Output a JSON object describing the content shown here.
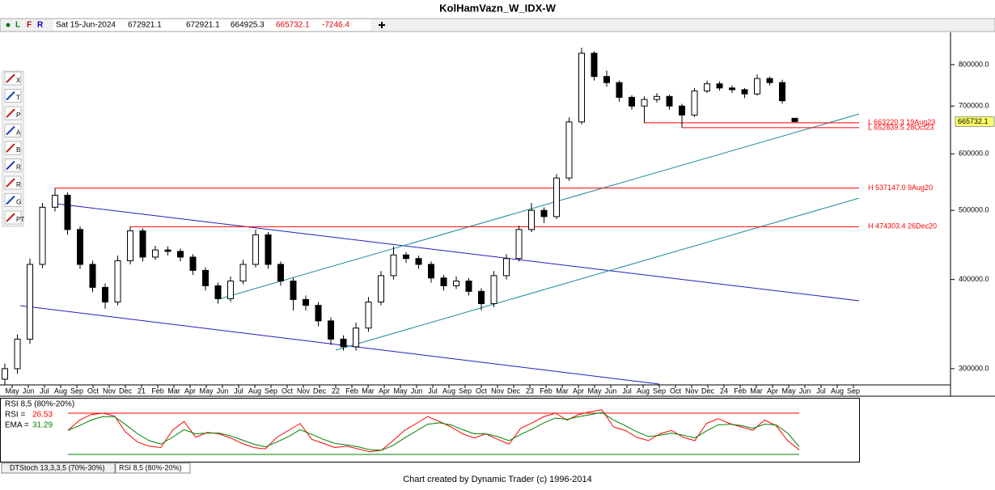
{
  "toolbar": {
    "date": "Sat 15-Jun-2024",
    "change": -7246.4,
    "modes": [
      "L",
      "F",
      "R"
    ]
  },
  "tools": [
    "X",
    "T",
    "P",
    "A",
    "B",
    "R",
    "R",
    "G",
    "PT"
  ],
  "chart_data": [
    {
      "type": "candlestick",
      "title": "KolHamVazn_W_IDX-W",
      "log_scale": true,
      "up_color": "#ffffff",
      "down_color": "#000000",
      "ylim": [
        287700,
        881000
      ],
      "yticks": [
        {
          "value": 300000,
          "label": "300000.0"
        },
        {
          "value": 400000,
          "label": "400000.0"
        },
        {
          "value": 500000,
          "label": "500000.0"
        },
        {
          "value": 600000,
          "label": "600000.0"
        },
        {
          "value": 700000,
          "label": "700000.0"
        },
        {
          "value": 800000,
          "label": "800000.0"
        }
      ],
      "xticks": [
        "May",
        "Jun",
        "Jul",
        "Aug",
        "Sep",
        "Oct",
        "Nov",
        "Dec",
        "21",
        "Feb",
        "Mar",
        "Apr",
        "May",
        "Jun",
        "Jul",
        "Aug",
        "Sep",
        "Oct",
        "Nov",
        "Dec",
        "22",
        "Feb",
        "Mar",
        "Apr",
        "May",
        "Jun",
        "Jul",
        "Aug",
        "Sep",
        "Oct",
        "Nov",
        "Dec",
        "23",
        "Feb",
        "Mar",
        "Apr",
        "May",
        "Jun",
        "Jul",
        "Aug",
        "Sep",
        "Oct",
        "Nov",
        "Dec",
        "24",
        "Feb",
        "Mar",
        "Apr",
        "May",
        "Jun",
        "Jul",
        "Aug",
        "Sep"
      ],
      "candles": [
        [
          290000,
          305000,
          285000,
          300000
        ],
        [
          300000,
          335000,
          295000,
          330000
        ],
        [
          330000,
          428000,
          325000,
          420000
        ],
        [
          420000,
          512000,
          415000,
          505000
        ],
        [
          505000,
          537147,
          498000,
          525000
        ],
        [
          525000,
          530000,
          462000,
          470000
        ],
        [
          470000,
          475000,
          414000,
          420000
        ],
        [
          420000,
          425000,
          384000,
          390000
        ],
        [
          390000,
          395000,
          364000,
          372000
        ],
        [
          372000,
          432000,
          368000,
          425000
        ],
        [
          425000,
          474303.4,
          420000,
          468000
        ],
        [
          468000,
          472000,
          424000,
          430000
        ],
        [
          430000,
          446000,
          426000,
          440000
        ],
        [
          440000,
          445000,
          432000,
          438000
        ],
        [
          438000,
          442000,
          424000,
          430000
        ],
        [
          430000,
          434000,
          406000,
          412000
        ],
        [
          412000,
          416000,
          386000,
          392000
        ],
        [
          392000,
          396000,
          370000,
          376000
        ],
        [
          376000,
          404000,
          372000,
          398000
        ],
        [
          398000,
          426000,
          394000,
          420000
        ],
        [
          420000,
          470000,
          416000,
          462000
        ],
        [
          462000,
          466000,
          414000,
          420000
        ],
        [
          420000,
          424000,
          392000,
          398000
        ],
        [
          398000,
          402000,
          362000,
          375000
        ],
        [
          375000,
          380000,
          362000,
          368000
        ],
        [
          368000,
          372000,
          344000,
          350000
        ],
        [
          350000,
          354000,
          324000,
          330000
        ],
        [
          330000,
          334000,
          318000,
          322000
        ],
        [
          322000,
          348000,
          318000,
          342000
        ],
        [
          342000,
          378000,
          338000,
          372000
        ],
        [
          372000,
          411000,
          368000,
          405000
        ],
        [
          405000,
          445000,
          400000,
          433000
        ],
        [
          433000,
          437000,
          422000,
          428000
        ],
        [
          428000,
          432000,
          414000,
          420000
        ],
        [
          420000,
          424000,
          396000,
          402000
        ],
        [
          402000,
          406000,
          386000,
          392000
        ],
        [
          392000,
          404000,
          388000,
          398000
        ],
        [
          398000,
          402000,
          380000,
          385000
        ],
        [
          385000,
          389000,
          362000,
          370000
        ],
        [
          370000,
          411000,
          366000,
          405000
        ],
        [
          405000,
          434000,
          400000,
          428000
        ],
        [
          428000,
          476000,
          424000,
          470000
        ],
        [
          470000,
          512000,
          466000,
          500000
        ],
        [
          500000,
          505000,
          480000,
          490000
        ],
        [
          490000,
          562000,
          486000,
          555000
        ],
        [
          555000,
          675000,
          550000,
          665000
        ],
        [
          665000,
          845000,
          660000,
          830000
        ],
        [
          830000,
          835000,
          760000,
          770000
        ],
        [
          770000,
          785000,
          745000,
          755000
        ],
        [
          755000,
          760000,
          710000,
          720000
        ],
        [
          720000,
          725000,
          692000,
          700000
        ],
        [
          700000,
          722000,
          663220.3,
          715000
        ],
        [
          715000,
          730000,
          708000,
          722000
        ],
        [
          722000,
          726000,
          692000,
          700000
        ],
        [
          700000,
          705000,
          652839.5,
          680000
        ],
        [
          680000,
          742000,
          676000,
          735000
        ],
        [
          735000,
          760000,
          730000,
          752000
        ],
        [
          752000,
          758000,
          736000,
          742000
        ],
        [
          742000,
          748000,
          730000,
          738000
        ],
        [
          738000,
          742000,
          718000,
          728000
        ],
        [
          728000,
          775000,
          724000,
          765000
        ],
        [
          765000,
          770000,
          748000,
          755000
        ],
        [
          755000,
          762000,
          705000,
          712000
        ],
        [
          672921.1,
          672921.1,
          664925.3,
          665732.1
        ]
      ],
      "levels": [
        {
          "value": 663220.3,
          "label": "L 663220.3 19Aug23"
        },
        {
          "value": 652839.5,
          "label": "L 652839.5 28Oct23"
        },
        {
          "value": 537147,
          "label": "H 537147.0 9Aug20"
        },
        {
          "value": 474303.4,
          "label": "H 474303.4 26Dec20"
        }
      ],
      "level_color": "#ff0000",
      "price_tag_color": "#ffff66"
    },
    {
      "type": "line",
      "title": "RSI 8,5 (80%-20%)",
      "ylim": [
        0,
        100
      ],
      "levels": [
        80,
        20
      ],
      "level_colors": [
        "#ff0000",
        "#008000"
      ],
      "series": [
        {
          "name": "RSI =",
          "color": "#ff0000",
          "values": [
            55,
            70,
            78,
            80,
            76,
            52,
            38,
            32,
            30,
            55,
            68,
            45,
            52,
            50,
            44,
            36,
            30,
            28,
            45,
            55,
            65,
            42,
            36,
            30,
            32,
            28,
            24,
            26,
            40,
            55,
            65,
            75,
            68,
            60,
            50,
            44,
            50,
            42,
            35,
            58,
            66,
            75,
            80,
            70,
            78,
            82,
            85,
            60,
            55,
            45,
            40,
            50,
            55,
            45,
            40,
            65,
            72,
            65,
            60,
            55,
            70,
            62,
            40,
            26.53
          ]
        },
        {
          "name": "EMA =",
          "color": "#008000",
          "values": [
            55,
            62,
            70,
            75,
            75,
            63,
            50,
            40,
            35,
            45,
            56,
            50,
            51,
            51,
            47,
            41,
            35,
            31,
            38,
            46,
            56,
            49,
            42,
            36,
            34,
            31,
            27,
            26,
            33,
            44,
            54,
            64,
            66,
            63,
            56,
            50,
            50,
            46,
            40,
            49,
            57,
            66,
            73,
            71,
            75,
            78,
            81,
            70,
            62,
            53,
            46,
            48,
            51,
            48,
            44,
            54,
            63,
            64,
            62,
            58,
            64,
            63,
            51,
            31.29
          ]
        }
      ]
    }
  ],
  "tabs": [
    "DTStoch 13,3,3,5 (70%-30%)",
    "RSI 8,5 (80%-20%)"
  ],
  "footer": "Chart created by Dynamic Trader  (c) 1996-2014"
}
